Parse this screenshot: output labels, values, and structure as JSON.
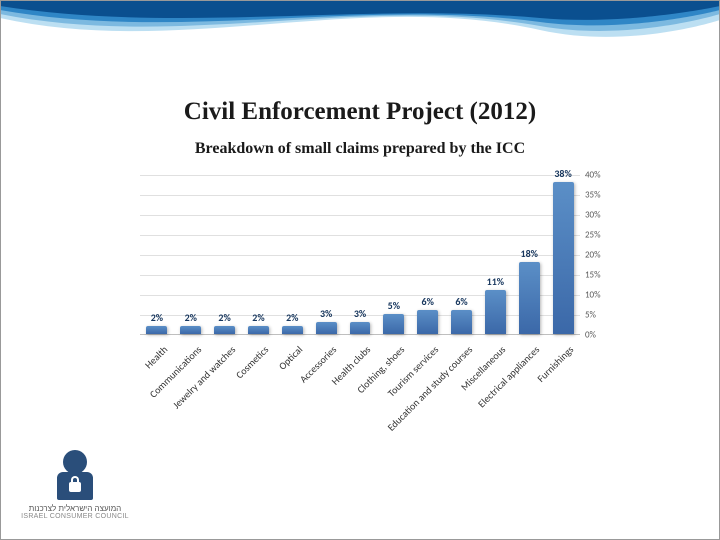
{
  "title": {
    "text": "Civil Enforcement Project (2012)",
    "fontsize": 25
  },
  "subtitle": {
    "text": "Breakdown of small claims prepared by the ICC",
    "fontsize": 16
  },
  "chart": {
    "type": "bar",
    "categories": [
      "Health",
      "Communications",
      "Jewelry and watches",
      "Cosmetics",
      "Optical",
      "Accessories",
      "Health clubs",
      "Clothing, shoes",
      "Tourism services",
      "Education and study courses",
      "Miscellaneous",
      "Electrical appliances",
      "Furnishings"
    ],
    "values": [
      2,
      2,
      2,
      2,
      2,
      3,
      3,
      5,
      6,
      6,
      11,
      18,
      38
    ],
    "bar_color_top": "#5b8fc7",
    "bar_color_bottom": "#3b68a8",
    "label_color": "#17365d",
    "label_fontsize": 10,
    "xlim": [
      0,
      13
    ],
    "ylim": [
      0,
      40
    ],
    "ytick_step": 5,
    "yticks": [
      "0%",
      "5%",
      "10%",
      "15%",
      "20%",
      "25%",
      "30%",
      "35%",
      "40%"
    ],
    "grid_color": "#e0e0e0",
    "axis_color": "#bfbfbf",
    "background_color": "#ffffff",
    "bar_width": 0.62,
    "category_label_rotation": -45,
    "category_label_fontsize": 10
  },
  "logo": {
    "line_he": "המועצה הישראלית לצרכנות",
    "line_en": "ISRAEL CONSUMER COUNCIL",
    "icon_color": "#2a4e7a"
  },
  "wave": {
    "colors": [
      "#0a4f8f",
      "#2f86c6",
      "#7cb9e0",
      "#bcdff2"
    ]
  }
}
